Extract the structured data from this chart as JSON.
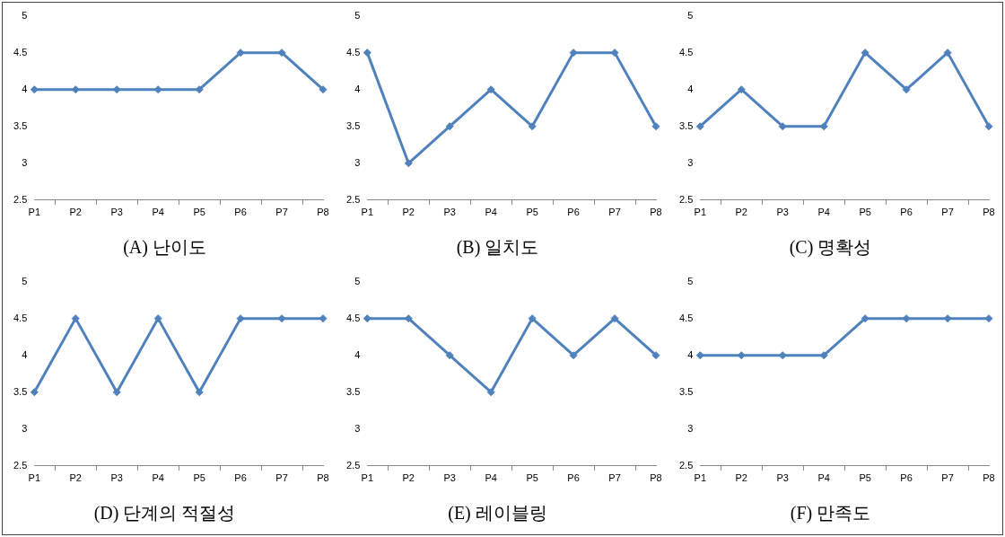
{
  "chart_data": [
    {
      "type": "line",
      "title": "(A) 난이도",
      "categories": [
        "P1",
        "P2",
        "P3",
        "P4",
        "P5",
        "P6",
        "P7",
        "P8"
      ],
      "values": [
        4,
        4,
        4,
        4,
        4,
        4.5,
        4.5,
        4
      ],
      "color": "#4f81bd",
      "ylim": [
        2.5,
        5
      ],
      "yticks": [
        2.5,
        3,
        3.5,
        4,
        4.5,
        5
      ],
      "grid": false,
      "legend": false,
      "marker": "diamond"
    },
    {
      "type": "line",
      "title": "(B) 일치도",
      "categories": [
        "P1",
        "P2",
        "P3",
        "P4",
        "P5",
        "P6",
        "P7",
        "P8"
      ],
      "values": [
        4.5,
        3,
        3.5,
        4,
        3.5,
        4.5,
        4.5,
        3.5
      ],
      "color": "#4f81bd",
      "ylim": [
        2.5,
        5
      ],
      "yticks": [
        2.5,
        3,
        3.5,
        4,
        4.5,
        5
      ],
      "grid": false,
      "legend": false,
      "marker": "diamond"
    },
    {
      "type": "line",
      "title": "(C) 명확성",
      "categories": [
        "P1",
        "P2",
        "P3",
        "P4",
        "P5",
        "P6",
        "P7",
        "P8"
      ],
      "values": [
        3.5,
        4,
        3.5,
        3.5,
        4.5,
        4,
        4.5,
        3.5
      ],
      "color": "#4f81bd",
      "ylim": [
        2.5,
        5
      ],
      "yticks": [
        2.5,
        3,
        3.5,
        4,
        4.5,
        5
      ],
      "grid": false,
      "legend": false,
      "marker": "diamond"
    },
    {
      "type": "line",
      "title": "(D) 단계의 적절성",
      "categories": [
        "P1",
        "P2",
        "P3",
        "P4",
        "P5",
        "P6",
        "P7",
        "P8"
      ],
      "values": [
        3.5,
        4.5,
        3.5,
        4.5,
        3.5,
        4.5,
        4.5,
        4.5
      ],
      "color": "#4f81bd",
      "ylim": [
        2.5,
        5
      ],
      "yticks": [
        2.5,
        3,
        3.5,
        4,
        4.5,
        5
      ],
      "grid": false,
      "legend": false,
      "marker": "diamond"
    },
    {
      "type": "line",
      "title": "(E) 레이블링",
      "categories": [
        "P1",
        "P2",
        "P3",
        "P4",
        "P5",
        "P6",
        "P7",
        "P8"
      ],
      "values": [
        4.5,
        4.5,
        4,
        3.5,
        4.5,
        4,
        4.5,
        4
      ],
      "color": "#4f81bd",
      "ylim": [
        2.5,
        5
      ],
      "yticks": [
        2.5,
        3,
        3.5,
        4,
        4.5,
        5
      ],
      "grid": false,
      "legend": false,
      "marker": "diamond"
    },
    {
      "type": "line",
      "title": "(F) 만족도",
      "categories": [
        "P1",
        "P2",
        "P3",
        "P4",
        "P5",
        "P6",
        "P7",
        "P8"
      ],
      "values": [
        4,
        4,
        4,
        4,
        4.5,
        4.5,
        4.5,
        4.5
      ],
      "color": "#4f81bd",
      "ylim": [
        2.5,
        5
      ],
      "yticks": [
        2.5,
        3,
        3.5,
        4,
        4.5,
        5
      ],
      "grid": false,
      "legend": false,
      "marker": "diamond"
    }
  ]
}
